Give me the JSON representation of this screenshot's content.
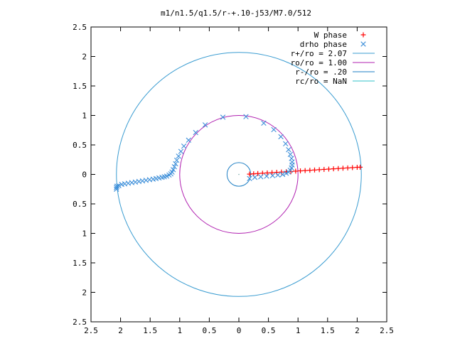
{
  "chart_data": {
    "type": "scatter",
    "title": "m1/n1.5/q1.5/r-+.10-j53/M7.0/512",
    "xlabel": "",
    "ylabel": "",
    "xlim": [
      -2.5,
      2.5
    ],
    "ylim": [
      -2.5,
      2.5
    ],
    "x_ticks": [
      -2.5,
      -2,
      -1.5,
      -1,
      -0.5,
      0,
      0.5,
      1,
      1.5,
      2,
      2.5
    ],
    "y_ticks": [
      -2.5,
      -2,
      -1.5,
      -1,
      -0.5,
      0,
      0.5,
      1,
      1.5,
      2,
      2.5
    ],
    "x_tick_labels": [
      "2.5",
      "2",
      "1.5",
      "1",
      "0.5",
      "0",
      "0.5",
      "1",
      "1.5",
      "2",
      "2.5"
    ],
    "y_tick_labels": [
      "2.5",
      "2",
      "1.5",
      "1",
      "0.5",
      "0",
      "0.5",
      "1",
      "1.5",
      "2",
      "2.5"
    ],
    "grid": false,
    "legend_position": "top-right",
    "series": [
      {
        "name": "W phase",
        "marker": "+",
        "color": "#ff0000",
        "points": [
          [
            0.18,
            0.005
          ],
          [
            0.25,
            0.01
          ],
          [
            0.32,
            0.015
          ],
          [
            0.4,
            0.02
          ],
          [
            0.48,
            0.025
          ],
          [
            0.56,
            0.03
          ],
          [
            0.64,
            0.035
          ],
          [
            0.72,
            0.04
          ],
          [
            0.8,
            0.045
          ],
          [
            0.88,
            0.05
          ],
          [
            0.96,
            0.055
          ],
          [
            1.04,
            0.06
          ],
          [
            1.12,
            0.065
          ],
          [
            1.2,
            0.07
          ],
          [
            1.28,
            0.075
          ],
          [
            1.36,
            0.08
          ],
          [
            1.44,
            0.085
          ],
          [
            1.52,
            0.09
          ],
          [
            1.6,
            0.095
          ],
          [
            1.68,
            0.1
          ],
          [
            1.76,
            0.105
          ],
          [
            1.84,
            0.11
          ],
          [
            1.92,
            0.115
          ],
          [
            2.0,
            0.12
          ],
          [
            2.05,
            0.122
          ]
        ]
      },
      {
        "name": "drho phase",
        "marker": "x",
        "color": "#3d8fd9",
        "points": [
          [
            -2.07,
            -0.22
          ],
          [
            -2.07,
            -0.25
          ],
          [
            -2.06,
            -0.2
          ],
          [
            -2.03,
            -0.19
          ],
          [
            -1.98,
            -0.17
          ],
          [
            -1.93,
            -0.16
          ],
          [
            -1.87,
            -0.15
          ],
          [
            -1.81,
            -0.14
          ],
          [
            -1.75,
            -0.13
          ],
          [
            -1.69,
            -0.12
          ],
          [
            -1.63,
            -0.11
          ],
          [
            -1.57,
            -0.1
          ],
          [
            -1.51,
            -0.09
          ],
          [
            -1.45,
            -0.08
          ],
          [
            -1.4,
            -0.07
          ],
          [
            -1.35,
            -0.06
          ],
          [
            -1.3,
            -0.05
          ],
          [
            -1.26,
            -0.04
          ],
          [
            -1.22,
            -0.03
          ],
          [
            -1.18,
            -0.01
          ],
          [
            -1.15,
            0.01
          ],
          [
            -1.13,
            0.04
          ],
          [
            -1.11,
            0.08
          ],
          [
            -1.09,
            0.13
          ],
          [
            -1.07,
            0.18
          ],
          [
            -1.05,
            0.24
          ],
          [
            -1.02,
            0.31
          ],
          [
            -0.98,
            0.39
          ],
          [
            -0.93,
            0.48
          ],
          [
            -0.85,
            0.58
          ],
          [
            -0.73,
            0.71
          ],
          [
            -0.57,
            0.84
          ],
          [
            -0.27,
            0.97
          ],
          [
            0.12,
            0.98
          ],
          [
            0.42,
            0.87
          ],
          [
            0.59,
            0.76
          ],
          [
            0.71,
            0.64
          ],
          [
            0.79,
            0.52
          ],
          [
            0.84,
            0.42
          ],
          [
            0.87,
            0.34
          ],
          [
            0.89,
            0.27
          ],
          [
            0.9,
            0.21
          ],
          [
            0.9,
            0.16
          ],
          [
            0.89,
            0.11
          ],
          [
            0.87,
            0.07
          ],
          [
            0.84,
            0.04
          ],
          [
            0.8,
            0.02
          ],
          [
            0.74,
            0.0
          ],
          [
            0.66,
            -0.01
          ],
          [
            0.57,
            -0.02
          ],
          [
            0.47,
            -0.03
          ],
          [
            0.37,
            -0.04
          ],
          [
            0.27,
            -0.05
          ],
          [
            0.18,
            -0.07
          ]
        ]
      },
      {
        "name": "r+/ro = 2.07",
        "type": "circle",
        "radius": 2.07,
        "color": "#3a9cd1"
      },
      {
        "name": "ro/ro = 1.00",
        "type": "circle",
        "radius": 1.0,
        "color": "#b020b0"
      },
      {
        "name": "r-/ro = .20",
        "type": "circle",
        "radius": 0.2,
        "color": "#1f7fc4"
      },
      {
        "name": "rc/ro = NaN",
        "type": "circle",
        "radius": null,
        "color": "#30c0c8"
      }
    ]
  }
}
